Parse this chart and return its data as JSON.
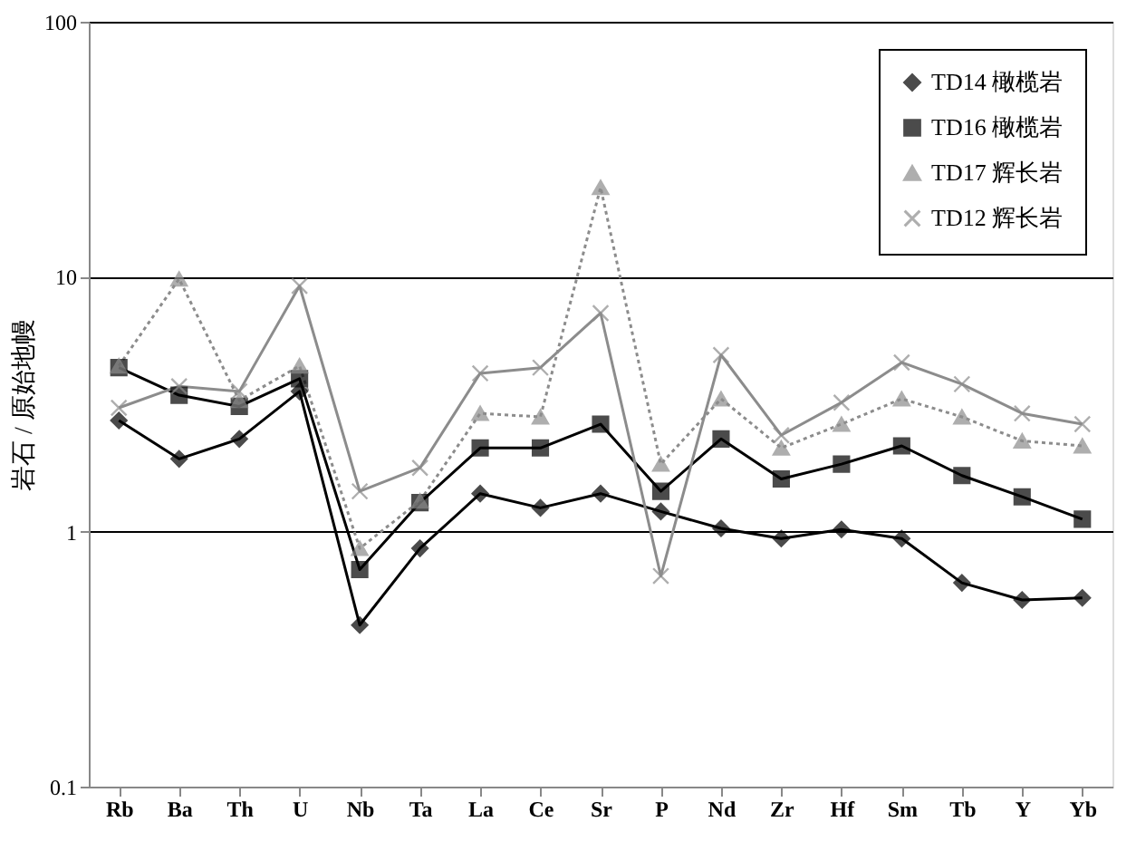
{
  "chart_data": {
    "type": "line",
    "ylabel": "岩石 / 原始地幔",
    "categories": [
      "Rb",
      "Ba",
      "Th",
      "U",
      "Nb",
      "Ta",
      "La",
      "Ce",
      "Sr",
      "P",
      "Nd",
      "Zr",
      "Hf",
      "Sm",
      "Tb",
      "Y",
      "Yb"
    ],
    "log": "y",
    "ylim": [
      0.1,
      100
    ],
    "yticks": [
      0.1,
      1,
      10,
      100
    ],
    "grid": "y",
    "legend": "top right",
    "series": [
      {
        "name": "TD14 橄榄岩",
        "color": "#000000",
        "marker": "diamond",
        "line_style": "solid",
        "values": [
          2.73,
          1.93,
          2.31,
          3.55,
          0.43,
          0.86,
          1.41,
          1.24,
          1.41,
          1.2,
          1.03,
          0.94,
          1.02,
          0.94,
          0.63,
          0.54,
          0.55
        ]
      },
      {
        "name": "TD16 橄榄岩",
        "color": "#000000",
        "marker": "square",
        "line_style": "solid",
        "values": [
          4.4,
          3.43,
          3.1,
          3.98,
          0.71,
          1.3,
          2.13,
          2.13,
          2.64,
          1.44,
          2.31,
          1.61,
          1.84,
          2.17,
          1.66,
          1.37,
          1.12
        ]
      },
      {
        "name": "TD17 辉长岩",
        "color": "#8c8c8c",
        "marker": "triangle",
        "line_style": "dotted",
        "values": [
          4.47,
          9.8,
          3.27,
          4.47,
          0.86,
          1.32,
          2.91,
          2.82,
          22.4,
          1.84,
          3.32,
          2.13,
          2.64,
          3.32,
          2.82,
          2.27,
          2.17
        ]
      },
      {
        "name": "TD12 辉长岩",
        "color": "#8c8c8c",
        "marker": "cross",
        "line_style": "solid",
        "values": [
          3.06,
          3.72,
          3.55,
          9.2,
          1.44,
          1.78,
          4.18,
          4.4,
          7.2,
          0.67,
          4.93,
          2.39,
          3.21,
          4.61,
          3.79,
          2.91,
          2.64
        ]
      }
    ]
  }
}
